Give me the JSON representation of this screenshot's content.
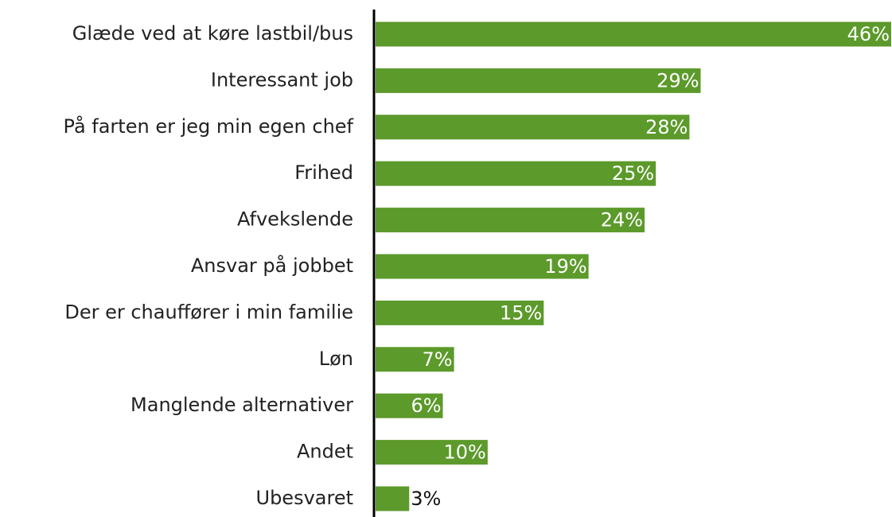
{
  "chart_data": {
    "type": "barh",
    "categories": [
      "Glæde ved at køre lastbil/bus",
      "Interessant job",
      "På farten er jeg min egen chef",
      "Frihed",
      "Afvekslende",
      "Ansvar på jobbet",
      "Der er chauffører i min familie",
      "Løn",
      "Manglende alternativer",
      "Andet",
      "Ubesvaret"
    ],
    "values": [
      46,
      29,
      28,
      25,
      24,
      19,
      15,
      7,
      6,
      10,
      3
    ],
    "value_labels": [
      "46%",
      "29%",
      "28%",
      "25%",
      "24%",
      "19%",
      "15%",
      "7%",
      "6%",
      "10%",
      "3%"
    ],
    "color": "#5c9a2b",
    "xlim": [
      0,
      46
    ]
  }
}
